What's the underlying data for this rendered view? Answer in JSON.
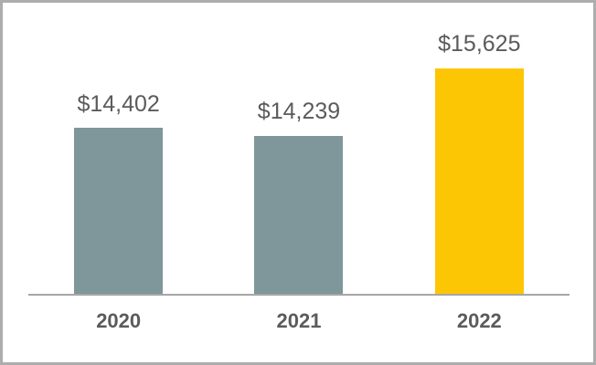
{
  "chart_data": {
    "type": "bar",
    "title": "",
    "xlabel": "",
    "ylabel": "",
    "categories": [
      "2020",
      "2021",
      "2022"
    ],
    "values": [
      14402,
      14239,
      15625
    ],
    "data_labels": [
      "$14,402",
      "$14,239",
      "$15,625"
    ],
    "ylim": [
      11000,
      16000
    ],
    "grid": false,
    "legend": false,
    "axis_line": "bottom-only",
    "bar_colors": [
      "#7F969B",
      "#7F969B",
      "#FCC605"
    ],
    "highlight_category": "2022"
  },
  "colors": {
    "bar_default": "#7F969B",
    "bar_highlight": "#FCC605",
    "label_text": "#5B5B5B",
    "axis_line": "#A6A6A6",
    "frame_border": "#ADADAD",
    "background": "#FFFFFF"
  }
}
